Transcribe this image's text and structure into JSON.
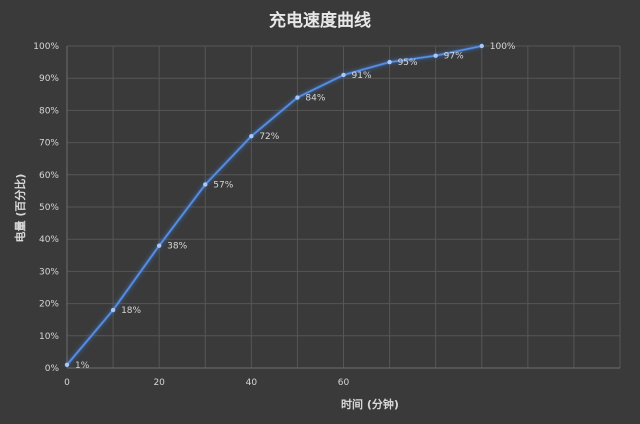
{
  "chart_data": {
    "type": "line",
    "title": "充电速度曲线",
    "xlabel": "时间 (分钟)",
    "ylabel": "电量 (百分比)",
    "x": [
      0,
      10,
      20,
      30,
      40,
      50,
      60,
      70,
      80,
      90
    ],
    "values": [
      1,
      18,
      38,
      57,
      72,
      84,
      91,
      95,
      97,
      100
    ],
    "data_labels": [
      "1%",
      "18%",
      "38%",
      "57%",
      "72%",
      "84%",
      "91%",
      "95%",
      "97%",
      "100%"
    ],
    "xlim": [
      0,
      120
    ],
    "ylim": [
      0,
      100
    ],
    "x_ticks": [
      "0",
      "20",
      "40",
      "60"
    ],
    "x_tick_values": [
      0,
      20,
      40,
      60
    ],
    "y_ticks": [
      "0%",
      "10%",
      "20%",
      "30%",
      "40%",
      "50%",
      "60%",
      "70%",
      "80%",
      "90%",
      "100%"
    ],
    "y_tick_values": [
      0,
      10,
      20,
      30,
      40,
      50,
      60,
      70,
      80,
      90,
      100
    ],
    "grid": true,
    "legend": "none",
    "colors": {
      "background": "#3a3a3a",
      "line": "#5b8fe0",
      "glow": "#3d7bd8",
      "point": "#a9c8f5",
      "grid": "#565656"
    }
  }
}
